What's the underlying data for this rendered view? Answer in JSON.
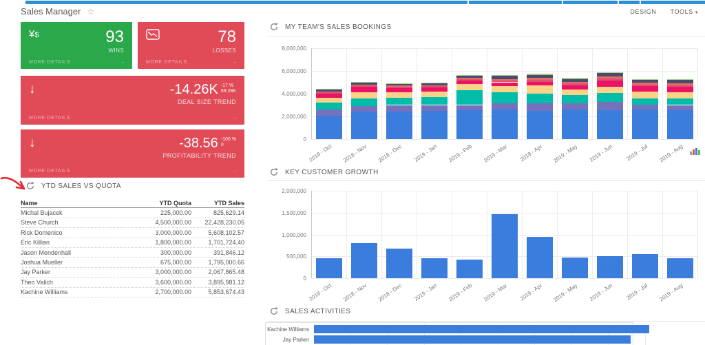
{
  "header": {
    "title": "Sales Manager",
    "design": "DESIGN",
    "tools": "TOOLS"
  },
  "glyphs": {
    "star": "☆",
    "caret": "▾",
    "forward_arrow": "→",
    "down_arrow": "↓",
    "currency_main": "¥",
    "currency_sub": "$"
  },
  "colors": {
    "topbar_blue": "#2e92da",
    "tile_green": "#2ba84a",
    "tile_red": "#e04b57",
    "bar_blue": "#3b7ddd",
    "annotation_red": "#e8282f"
  },
  "kpis": [
    {
      "value": "93",
      "label": "WINS",
      "more_details": "MORE DETAILS",
      "icon": "currency-icon"
    },
    {
      "value": "78",
      "label": "LOSSES",
      "more_details": "MORE DETAILS",
      "icon": "line-chart-down-icon"
    },
    {
      "value": "-14.26K",
      "delta_pct": "-17 %",
      "delta_abs": "69.28K",
      "label": "DEAL SIZE TREND",
      "more_details": "MORE DETAILS",
      "icon": "arrow-down-icon"
    },
    {
      "value": "-38.56",
      "delta_pct": "-100 %",
      "delta_abs": "0",
      "label": "PROFITABILITY TREND",
      "more_details": "MORE DETAILS",
      "icon": "arrow-down-icon"
    }
  ],
  "quota_table": {
    "title": "YTD SALES VS QUOTA",
    "columns": [
      "Name",
      "YTD Quota",
      "YTD Sales"
    ],
    "rows": [
      [
        "Michal Bujacek",
        "225,000.00",
        "825,629.14"
      ],
      [
        "Steve Church",
        "4,500,000.00",
        "22,428,230.05"
      ],
      [
        "Rick Domenico",
        "3,000,000.00",
        "5,608,102.57"
      ],
      [
        "Eric Killian",
        "1,800,000.00",
        "1,701,724.40"
      ],
      [
        "Jason Mendenhall",
        "300,000.00",
        "391,846.12"
      ],
      [
        "Joshua Mueller",
        "675,000.00",
        "1,795,000.66"
      ],
      [
        "Jay Parker",
        "3,000,000.00",
        "2,067,865.48"
      ],
      [
        "Theo Valich",
        "3,600,000.00",
        "3,895,981.12"
      ],
      [
        "Kachine Williams",
        "2,700,000.00",
        "5,853,674.43"
      ]
    ]
  },
  "chart_data": [
    {
      "id": "sales_bookings",
      "type": "bar",
      "stacked": true,
      "title": "MY TEAM'S SALES BOOKINGS",
      "categories": [
        "2018 - Oct",
        "2018 - Nov",
        "2018 - Dec",
        "2019 - Jan",
        "2019 - Feb",
        "2019 - Mar",
        "2019 - Apr",
        "2019 - May",
        "2019 - Jun",
        "2019 - Jul",
        "2019 - Aug"
      ],
      "series": [
        {
          "name": "series-1",
          "color": "#3b7ddd",
          "values": [
            2050000,
            2400000,
            2450000,
            2500000,
            2550000,
            2600000,
            2500000,
            2600000,
            2550000,
            2600000,
            2550000
          ]
        },
        {
          "name": "series-2",
          "color": "#7572bd",
          "values": [
            550000,
            500000,
            550000,
            500000,
            450000,
            550000,
            650000,
            550000,
            700000,
            450000,
            450000
          ]
        },
        {
          "name": "series-3",
          "color": "#00bdaa",
          "values": [
            600000,
            650000,
            650000,
            700000,
            1300000,
            950000,
            850000,
            750000,
            800000,
            550000,
            600000
          ]
        },
        {
          "name": "series-4",
          "color": "#fbd388",
          "values": [
            450000,
            550000,
            500000,
            500000,
            550000,
            550000,
            700000,
            450000,
            550000,
            600000,
            550000
          ]
        },
        {
          "name": "series-5",
          "color": "#eb1164",
          "values": [
            350000,
            500000,
            350000,
            350000,
            300000,
            350000,
            350000,
            400000,
            550000,
            450000,
            450000
          ]
        },
        {
          "name": "series-6",
          "color": "#e0506e",
          "values": [
            100000,
            100000,
            100000,
            100000,
            120000,
            150000,
            150000,
            150000,
            200000,
            150000,
            150000
          ]
        },
        {
          "name": "series-7",
          "color": "#de7067",
          "values": [
            100000,
            100000,
            100000,
            100000,
            120000,
            150000,
            200000,
            150000,
            150000,
            150000,
            150000
          ]
        },
        {
          "name": "series-8",
          "color": "#4b4b6b",
          "values": [
            150000,
            200000,
            150000,
            150000,
            200000,
            250000,
            250000,
            250000,
            300000,
            250000,
            300000
          ]
        },
        {
          "name": "series-9",
          "color": "#a2cf8f",
          "values": [
            50000,
            50000,
            50000,
            50000,
            60000,
            100000,
            100000,
            100000,
            100000,
            50000,
            100000
          ]
        }
      ],
      "ylim": [
        0,
        8000000
      ],
      "yticks": [
        "8,000,000",
        "6,000,000",
        "4,000,000",
        "2,000,000",
        "0"
      ],
      "grid": true,
      "legend": "none"
    },
    {
      "id": "key_customer_growth",
      "type": "bar",
      "title": "KEY CUSTOMER GROWTH",
      "categories": [
        "2018 - Oct",
        "2018 - Nov",
        "2018 - Dec",
        "2019 - Jan",
        "2019 - Feb",
        "2019 - Mar",
        "2019 - Apr",
        "2019 - May",
        "2019 - Jun",
        "2019 - Jul",
        "2019 - Aug"
      ],
      "values": [
        450000,
        810000,
        670000,
        450000,
        430000,
        1470000,
        950000,
        470000,
        500000,
        550000,
        450000
      ],
      "color": "#3b7ddd",
      "ylim": [
        0,
        2000000
      ],
      "yticks": [
        "2,000,000",
        "1,500,000",
        "1,000,000",
        "500,000",
        "0"
      ],
      "grid": true,
      "legend": "none"
    },
    {
      "id": "sales_activities",
      "type": "bar",
      "orientation": "horizontal",
      "title": "SALES ACTIVITIES",
      "categories": [
        "Kachine Williams",
        "Jay Parker"
      ],
      "values_fraction_of_axis": [
        0.91,
        0.86
      ],
      "color": "#3b7ddd",
      "grid": true,
      "legend": "none",
      "note_visible_area": "chart cut off at bottom of screenshot"
    }
  ]
}
